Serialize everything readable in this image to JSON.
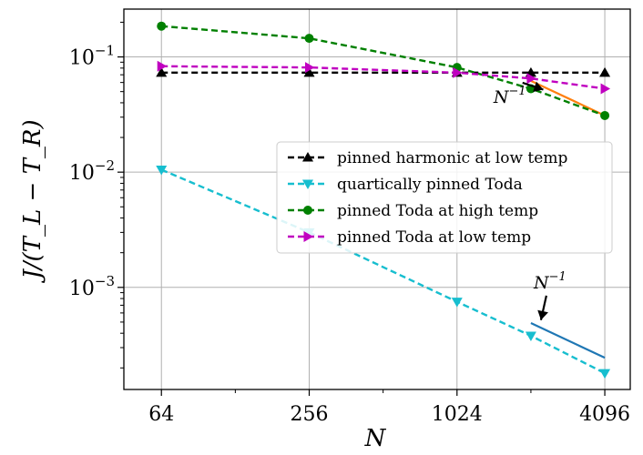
{
  "chart_data": {
    "type": "line",
    "xscale": "log2",
    "yscale": "log10",
    "xlabel": "N",
    "ylabel": "J/(T_L − T_R)",
    "xlim": [
      45,
      5200
    ],
    "ylim": [
      0.00013,
      0.26
    ],
    "xticks": [
      64,
      256,
      1024,
      4096
    ],
    "xtick_labels": [
      "64",
      "256",
      "1024",
      "4096"
    ],
    "yticks": [
      0.001,
      0.01,
      0.1
    ],
    "ytick_labels": [
      {
        "base": "10",
        "exp": "−3"
      },
      {
        "base": "10",
        "exp": "−2"
      },
      {
        "base": "10",
        "exp": "−1"
      }
    ],
    "grid": true,
    "legend": {
      "position": "center-right"
    },
    "series": [
      {
        "name": " pinned harmonic at low temp",
        "color": "#000000",
        "marker": "triangle-up",
        "x": [
          64,
          256,
          1024,
          2048,
          4096
        ],
        "y": [
          0.073,
          0.073,
          0.073,
          0.073,
          0.073
        ]
      },
      {
        "name": "quartically pinned Toda",
        "color": "#17becf",
        "marker": "triangle-down",
        "x": [
          64,
          256,
          1024,
          2048,
          4096
        ],
        "y": [
          0.0105,
          0.003,
          0.00075,
          0.00038,
          0.00018
        ]
      },
      {
        "name": "pinned Toda at high temp",
        "color": "#008000",
        "marker": "circle",
        "x": [
          64,
          256,
          1024,
          2048,
          4096
        ],
        "y": [
          0.185,
          0.145,
          0.081,
          0.053,
          0.031
        ]
      },
      {
        "name": "pinned Toda at low temp",
        "color": "#c000c0",
        "marker": "triangle-right",
        "x": [
          64,
          256,
          1024,
          2048,
          4096
        ],
        "y": [
          0.083,
          0.081,
          0.073,
          0.065,
          0.053
        ]
      }
    ],
    "reference_lines": [
      {
        "name": "N^-1 reference (upper)",
        "color": "#ff7f0e",
        "x": [
          2048,
          4096
        ],
        "y": [
          0.062,
          0.031
        ]
      },
      {
        "name": "N^-1 reference (lower)",
        "color": "#1f77b4",
        "x": [
          2048,
          4096
        ],
        "y": [
          0.00049,
          0.000245
        ]
      }
    ],
    "annotations": [
      {
        "base": "N",
        "exp": "−1",
        "text_x": 1680,
        "text_y": 0.04,
        "arrow_to_x": 2300,
        "arrow_to_y": 0.052
      },
      {
        "base": "N",
        "exp": "−1",
        "text_x": 2450,
        "text_y": 0.00098,
        "arrow_to_x": 2250,
        "arrow_to_y": 0.00052
      }
    ]
  }
}
